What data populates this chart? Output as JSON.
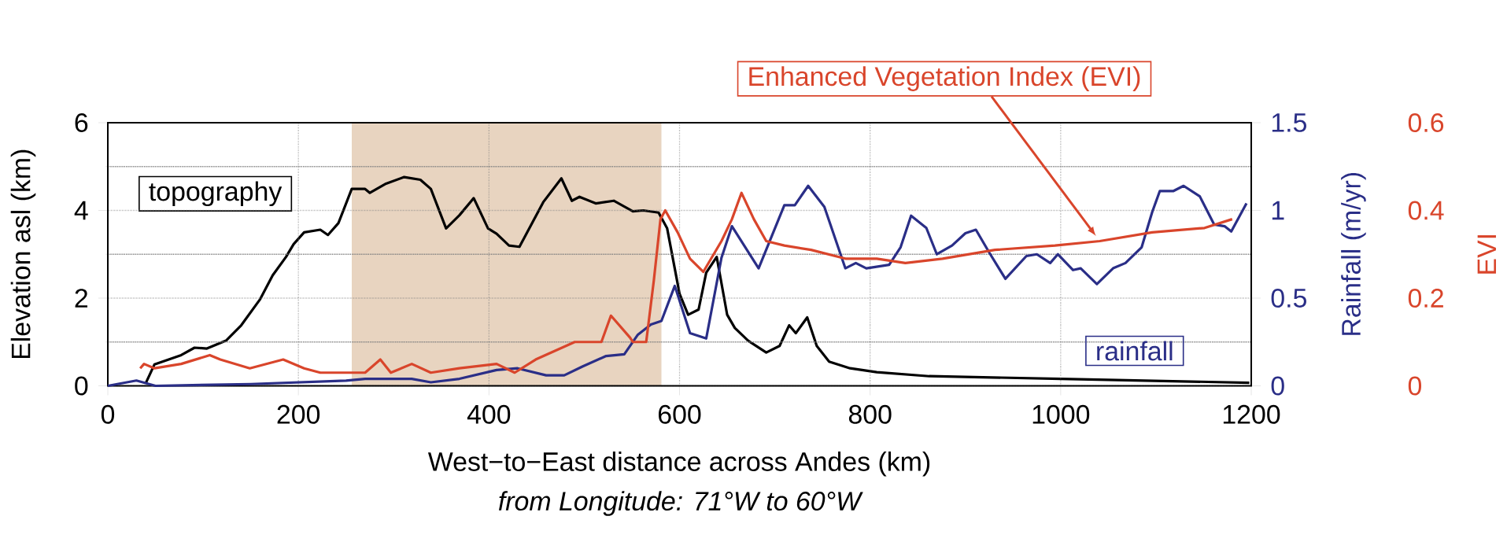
{
  "chart_data": {
    "type": "line",
    "xlabel": "West−to−East distance across Andes (km)",
    "ylabel": "Elevation asl (km)",
    "y2label": "Rainfall (m/yr)",
    "y3label": "EVI",
    "annotations": [
      "from Longitude: 71°W to 60°W"
    ],
    "xlim": [
      0,
      1200
    ],
    "xticks": [
      0,
      200,
      400,
      600,
      800,
      1000,
      1200
    ],
    "ylim": [
      0,
      6
    ],
    "yticks": [
      0,
      2,
      4,
      6
    ],
    "y2lim": [
      0,
      1.5
    ],
    "y2ticks": [
      0,
      0.5,
      1,
      1.5
    ],
    "y3lim": [
      0,
      0.6
    ],
    "y3ticks": [
      0,
      0.2,
      0.4,
      0.6
    ],
    "grid": true,
    "bands": [
      {
        "axis": "x",
        "from": 256,
        "to": 581,
        "color": "#e8d4c0"
      }
    ],
    "series": [
      {
        "name": "topography",
        "color": "#000000",
        "axis": "y",
        "x": [
          40,
          49,
          77,
          91,
          104,
          124,
          140,
          160,
          173,
          187,
          195,
          206,
          223,
          231,
          242,
          256,
          270,
          275,
          292,
          311,
          328,
          339,
          355,
          369,
          384,
          399,
          408,
          421,
          432,
          457,
          476,
          487,
          495,
          512,
          531,
          551,
          562,
          578,
          587,
          600,
          609,
          620,
          628,
          639,
          650,
          658,
          672,
          691,
          705,
          715,
          722,
          734,
          744,
          757,
          779,
          807,
          862,
          1000,
          1198
        ],
        "values": [
          0.07,
          0.49,
          0.7,
          0.87,
          0.85,
          1.03,
          1.38,
          1.98,
          2.52,
          2.94,
          3.23,
          3.5,
          3.56,
          3.44,
          3.71,
          4.49,
          4.49,
          4.4,
          4.61,
          4.76,
          4.7,
          4.49,
          3.59,
          3.89,
          4.28,
          3.59,
          3.47,
          3.2,
          3.17,
          4.19,
          4.73,
          4.22,
          4.31,
          4.16,
          4.22,
          3.98,
          4.0,
          3.95,
          3.59,
          2.1,
          1.62,
          1.74,
          2.58,
          2.94,
          1.62,
          1.32,
          1.03,
          0.76,
          0.91,
          1.38,
          1.2,
          1.56,
          0.91,
          0.55,
          0.4,
          0.31,
          0.22,
          0.16,
          0.07
        ]
      },
      {
        "name": "rainfall",
        "color": "#2a2e87",
        "axis": "y2",
        "x": [
          0,
          30,
          50,
          150,
          250,
          270,
          319,
          339,
          369,
          408,
          430,
          460,
          479,
          498,
          523,
          542,
          556,
          570,
          581,
          595,
          611,
          628,
          644,
          655,
          683,
          710,
          721,
          735,
          752,
          774,
          785,
          796,
          820,
          832,
          843,
          859,
          870,
          886,
          900,
          911,
          925,
          942,
          964,
          975,
          989,
          997,
          1013,
          1021,
          1038,
          1055,
          1068,
          1085,
          1096,
          1104,
          1118,
          1129,
          1146,
          1161,
          1172,
          1179,
          1195
        ],
        "values": [
          0.0,
          0.03,
          0.0,
          0.01,
          0.03,
          0.04,
          0.04,
          0.02,
          0.04,
          0.09,
          0.1,
          0.06,
          0.06,
          0.11,
          0.17,
          0.18,
          0.29,
          0.35,
          0.37,
          0.57,
          0.3,
          0.27,
          0.73,
          0.91,
          0.67,
          1.03,
          1.03,
          1.14,
          1.02,
          0.67,
          0.7,
          0.67,
          0.69,
          0.79,
          0.97,
          0.9,
          0.75,
          0.8,
          0.87,
          0.89,
          0.76,
          0.61,
          0.74,
          0.75,
          0.7,
          0.75,
          0.66,
          0.67,
          0.58,
          0.67,
          0.7,
          0.79,
          0.99,
          1.11,
          1.11,
          1.14,
          1.08,
          0.92,
          0.91,
          0.88,
          1.04
        ]
      },
      {
        "name": "Enhanced Vegetation Index (EVI)",
        "color": "#d9452b",
        "axis": "y3",
        "x": [
          34,
          38,
          49,
          77,
          107,
          118,
          149,
          184,
          206,
          223,
          242,
          270,
          286,
          297,
          319,
          339,
          369,
          408,
          427,
          449,
          490,
          518,
          528,
          548,
          551,
          565,
          573,
          580,
          585,
          598,
          611,
          625,
          644,
          655,
          665,
          678,
          691,
          710,
          738,
          774,
          807,
          837,
          876,
          931,
          994,
          1041,
          1096,
          1151,
          1180
        ],
        "values": [
          0.04,
          0.05,
          0.04,
          0.05,
          0.07,
          0.06,
          0.04,
          0.06,
          0.04,
          0.03,
          0.03,
          0.03,
          0.06,
          0.03,
          0.05,
          0.03,
          0.04,
          0.05,
          0.03,
          0.06,
          0.1,
          0.1,
          0.16,
          0.11,
          0.1,
          0.1,
          0.24,
          0.38,
          0.4,
          0.35,
          0.29,
          0.26,
          0.33,
          0.38,
          0.44,
          0.38,
          0.33,
          0.32,
          0.31,
          0.29,
          0.29,
          0.28,
          0.29,
          0.31,
          0.32,
          0.33,
          0.35,
          0.36,
          0.38
        ]
      }
    ]
  }
}
